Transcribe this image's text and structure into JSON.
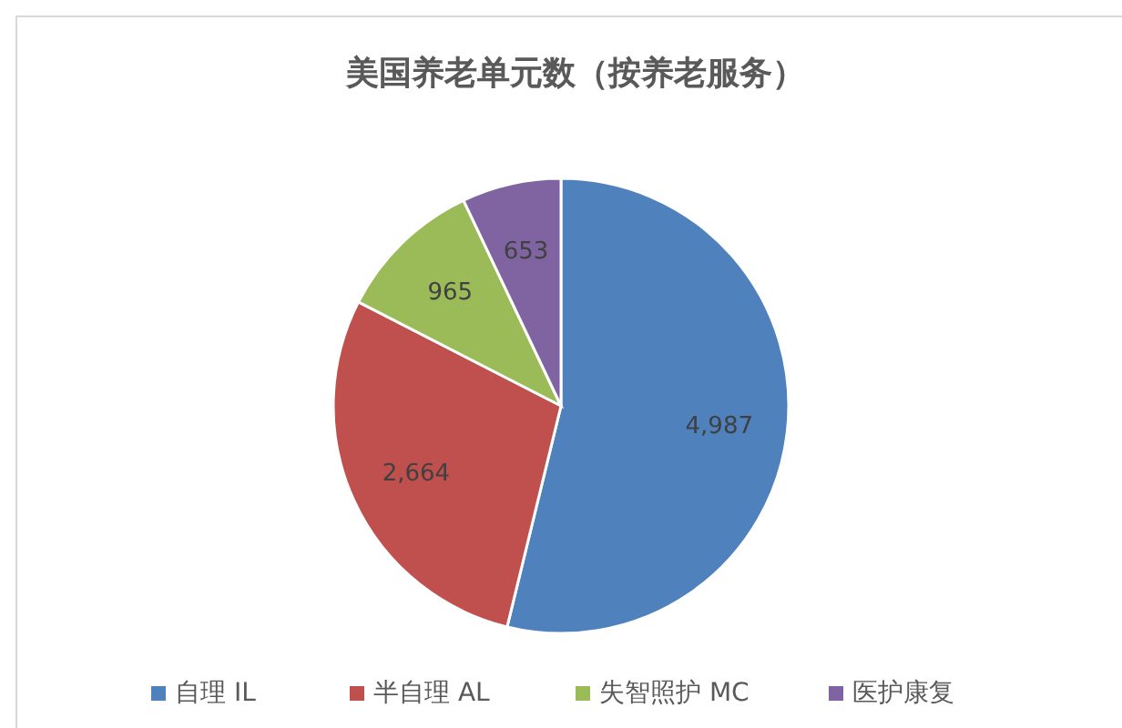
{
  "chart_data": {
    "type": "pie",
    "title": "美国养老单元数（按养老服务）",
    "categories": [
      "自理 IL",
      "半自理 AL",
      "失智照护 MC",
      "医护康复"
    ],
    "values": [
      4987,
      2664,
      965,
      653
    ],
    "value_labels": [
      "4,987",
      "2,664",
      "965",
      "653"
    ],
    "colors": [
      "#4f81bd",
      "#c0504d",
      "#9bbb59",
      "#8064a2"
    ],
    "legend": "bottom"
  }
}
